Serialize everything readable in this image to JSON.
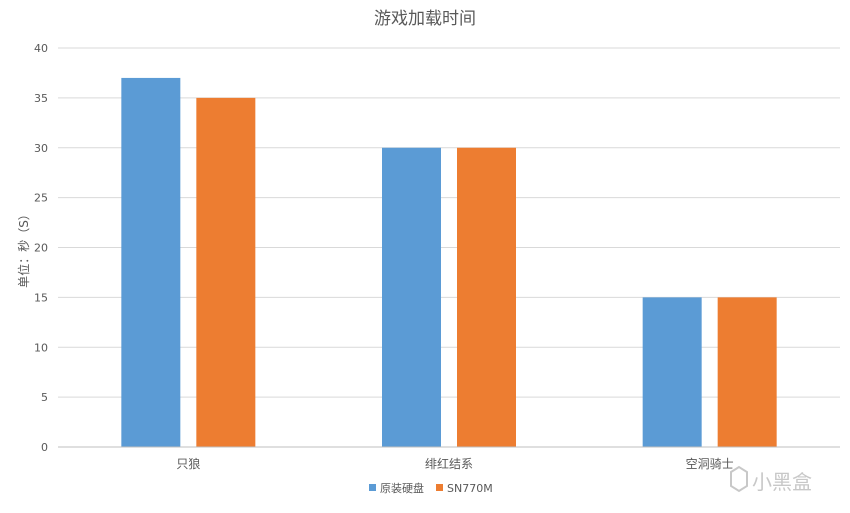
{
  "chart_data": {
    "type": "bar",
    "title": "游戏加载时间",
    "xlabel": "",
    "ylabel": "单位：秒（S）",
    "categories": [
      "只狼",
      "绯红结系",
      "空洞骑士"
    ],
    "series": [
      {
        "name": "原装硬盘",
        "values": [
          37,
          30,
          15
        ],
        "color": "#5b9bd5"
      },
      {
        "name": "SN770M",
        "values": [
          35,
          30,
          15
        ],
        "color": "#ed7d31"
      }
    ],
    "ylim": [
      0,
      40
    ],
    "yticks": [
      0,
      5,
      10,
      15,
      20,
      25,
      30,
      35,
      40
    ],
    "grid": true,
    "legend_position": "bottom"
  },
  "watermark": {
    "text": "小黑盒",
    "icon": "heybox-logo-icon"
  }
}
